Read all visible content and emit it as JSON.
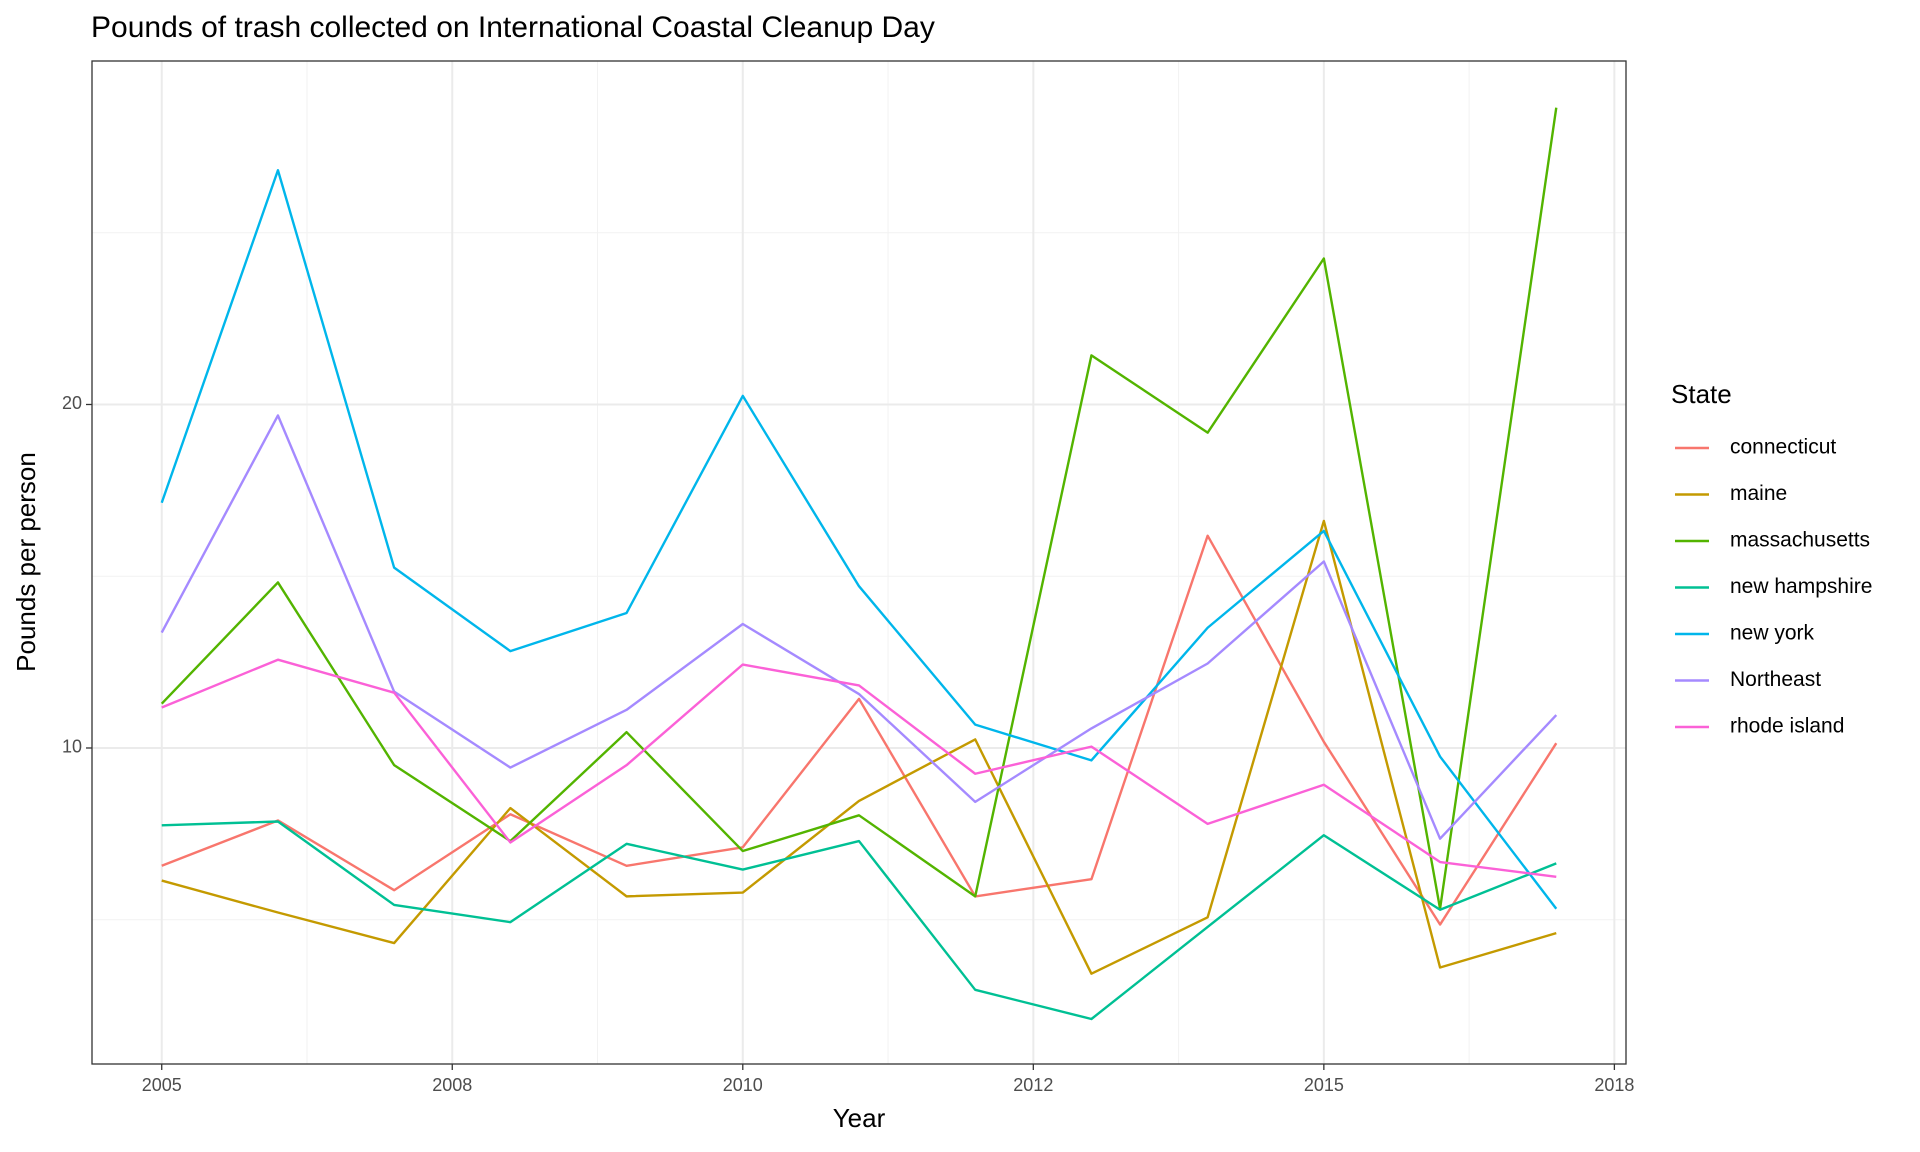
{
  "chart_data": {
    "type": "line",
    "title": "Pounds of trash collected on International Coastal Cleanup Day",
    "x_label": "Year",
    "y_label": "Pounds per person",
    "legend_title": "State",
    "legend": "right",
    "grid": true,
    "x": [
      2005,
      2006,
      2007,
      2008,
      2009,
      2010,
      2011,
      2012,
      2013,
      2014,
      2015,
      2016,
      2017
    ],
    "xlim": [
      2004.4,
      2017.6
    ],
    "xticks": [
      2005,
      {
        "value": 2007.5,
        "label": "2008"
      },
      2010,
      {
        "value": 2012.5,
        "label": "2012"
      },
      2015,
      {
        "value": 2017.5,
        "label": "2018"
      }
    ],
    "ylim": [
      0.8,
      30.0
    ],
    "yticks": [
      10,
      20
    ],
    "series": [
      {
        "name": "connecticut",
        "color": "#F8766D",
        "values": [
          6.57,
          7.89,
          5.86,
          8.07,
          6.57,
          7.11,
          11.43,
          5.68,
          6.18,
          16.18,
          10.18,
          4.86,
          10.14
        ]
      },
      {
        "name": "maine",
        "color": "#C49A00",
        "values": [
          6.14,
          5.21,
          4.32,
          8.25,
          5.68,
          5.79,
          8.46,
          10.25,
          3.43,
          5.07,
          16.61,
          3.61,
          4.61
        ]
      },
      {
        "name": "massachusetts",
        "color": "#53B400",
        "values": [
          11.29,
          14.82,
          9.5,
          7.29,
          10.46,
          7.0,
          8.04,
          5.68,
          21.43,
          19.18,
          24.25,
          5.32,
          28.64
        ]
      },
      {
        "name": "new hampshire",
        "color": "#00C094",
        "values": [
          7.75,
          7.86,
          5.43,
          4.93,
          7.21,
          6.46,
          7.29,
          2.96,
          2.11,
          4.79,
          7.46,
          5.29,
          6.64
        ]
      },
      {
        "name": "new york",
        "color": "#00B6EB",
        "values": [
          17.14,
          26.82,
          15.25,
          12.82,
          13.93,
          20.25,
          14.71,
          10.68,
          9.64,
          13.5,
          16.32,
          9.75,
          5.32
        ]
      },
      {
        "name": "Northeast",
        "color": "#A58AFF",
        "values": [
          13.36,
          19.68,
          11.64,
          9.43,
          11.11,
          13.61,
          11.57,
          8.43,
          10.57,
          12.46,
          15.43,
          7.36,
          10.96
        ]
      },
      {
        "name": "rhode island",
        "color": "#FB61D7",
        "values": [
          11.18,
          12.57,
          11.61,
          7.25,
          9.5,
          12.43,
          11.82,
          9.25,
          10.04,
          7.79,
          8.93,
          6.68,
          6.25
        ]
      }
    ]
  }
}
